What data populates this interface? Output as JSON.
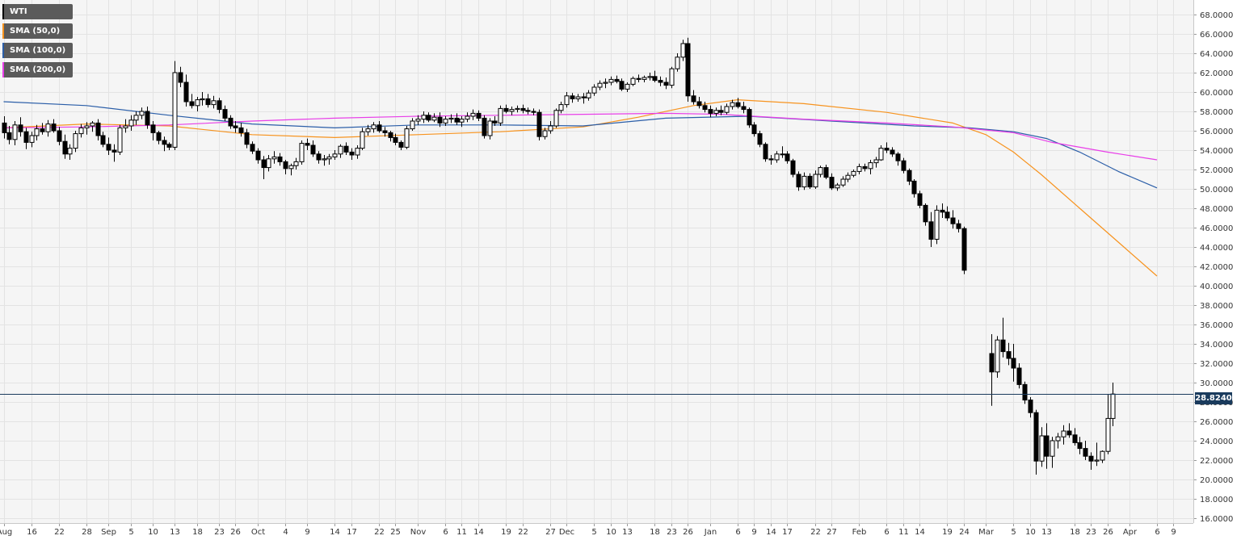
{
  "chart_data": {
    "type": "candlestick",
    "instrument": "WTI",
    "legend": [
      {
        "label": "WTI",
        "color": "#000000"
      },
      {
        "label": "SMA (50,0)",
        "color": "#f7931e"
      },
      {
        "label": "SMA (100,0)",
        "color": "#2b5ea8"
      },
      {
        "label": "SMA (200,0)",
        "color": "#e83ee8"
      }
    ],
    "legend_placement": "top-left",
    "grid": true,
    "y_axis": {
      "position": "right",
      "ylim": [
        15.5,
        69.5
      ],
      "ticks": [
        "16.0000",
        "18.0000",
        "20.0000",
        "22.0000",
        "24.0000",
        "26.0000",
        "28.0000",
        "30.0000",
        "32.0000",
        "34.0000",
        "36.0000",
        "38.0000",
        "40.0000",
        "42.0000",
        "44.0000",
        "46.0000",
        "48.0000",
        "50.0000",
        "52.0000",
        "54.0000",
        "56.0000",
        "58.0000",
        "60.0000",
        "62.0000",
        "64.0000",
        "66.0000",
        "68.0000"
      ]
    },
    "x_axis": {
      "ticks": [
        "Aug",
        "16",
        "22",
        "28",
        "Sep",
        "5",
        "10",
        "13",
        "18",
        "23",
        "26",
        "Oct",
        "4",
        "9",
        "14",
        "17",
        "22",
        "25",
        "Nov",
        "6",
        "11",
        "14",
        "19",
        "22",
        "27",
        "Dec",
        "5",
        "10",
        "13",
        "18",
        "23",
        "26",
        "Jan",
        "6",
        "9",
        "14",
        "17",
        "22",
        "27",
        "Feb",
        "6",
        "11",
        "14",
        "19",
        "24",
        "Mar",
        "5",
        "10",
        "13",
        "18",
        "23",
        "26",
        "Apr",
        "6",
        "9"
      ],
      "tick_index": [
        0,
        5,
        10,
        15,
        19,
        23,
        27,
        31,
        35,
        39,
        42,
        46,
        51,
        55,
        60,
        63,
        68,
        71,
        75,
        80,
        83,
        86,
        91,
        94,
        99,
        102,
        107,
        110,
        113,
        118,
        121,
        124,
        128,
        133,
        136,
        139,
        142,
        147,
        150,
        155,
        160,
        163,
        166,
        171,
        174,
        178,
        183,
        186,
        189,
        194,
        197,
        200,
        204,
        209,
        212
      ]
    },
    "current_price": {
      "value": 28.824,
      "label": "28.8240"
    },
    "ohlc": [
      [
        56.8,
        57.5,
        55.2,
        55.8
      ],
      [
        55.8,
        56.5,
        54.6,
        55.1
      ],
      [
        55.1,
        57.0,
        54.5,
        56.6
      ],
      [
        56.6,
        57.4,
        55.4,
        55.9
      ],
      [
        55.9,
        56.3,
        54.1,
        54.8
      ],
      [
        54.8,
        55.9,
        54.3,
        55.5
      ],
      [
        55.5,
        56.6,
        55.0,
        56.2
      ],
      [
        56.2,
        56.8,
        55.6,
        55.9
      ],
      [
        55.9,
        57.1,
        55.4,
        56.7
      ],
      [
        56.7,
        57.2,
        55.8,
        56.0
      ],
      [
        56.0,
        56.4,
        54.5,
        54.9
      ],
      [
        54.9,
        55.6,
        53.1,
        53.6
      ],
      [
        53.6,
        54.6,
        53.0,
        54.2
      ],
      [
        54.2,
        56.0,
        53.8,
        55.7
      ],
      [
        55.7,
        56.7,
        55.3,
        56.3
      ],
      [
        56.3,
        56.9,
        55.6,
        56.5
      ],
      [
        56.5,
        57.0,
        55.9,
        56.8
      ],
      [
        56.8,
        57.2,
        55.0,
        55.5
      ],
      [
        55.5,
        55.9,
        54.3,
        54.6
      ],
      [
        54.6,
        55.3,
        53.5,
        54.0
      ],
      [
        54.0,
        54.6,
        52.8,
        53.8
      ],
      [
        53.8,
        56.6,
        53.5,
        56.3
      ],
      [
        56.3,
        57.2,
        55.8,
        56.5
      ],
      [
        56.5,
        57.6,
        56.0,
        57.1
      ],
      [
        57.1,
        58.0,
        56.6,
        57.6
      ],
      [
        57.6,
        58.4,
        57.2,
        58.0
      ],
      [
        58.0,
        58.5,
        56.2,
        56.6
      ],
      [
        56.6,
        57.0,
        55.0,
        55.8
      ],
      [
        55.8,
        56.0,
        54.6,
        55.0
      ],
      [
        55.0,
        55.4,
        53.9,
        54.6
      ],
      [
        54.6,
        54.8,
        54.0,
        54.3
      ],
      [
        54.3,
        63.2,
        54.0,
        62.0
      ],
      [
        62.0,
        62.6,
        60.5,
        61.0
      ],
      [
        61.0,
        61.8,
        58.5,
        59.0
      ],
      [
        59.0,
        59.8,
        58.3,
        58.6
      ],
      [
        58.6,
        59.5,
        58.0,
        59.2
      ],
      [
        59.2,
        60.0,
        58.6,
        59.3
      ],
      [
        59.3,
        59.8,
        58.4,
        58.7
      ],
      [
        58.7,
        59.6,
        58.3,
        59.1
      ],
      [
        59.1,
        59.4,
        57.8,
        58.2
      ],
      [
        58.2,
        58.6,
        57.0,
        57.3
      ],
      [
        57.3,
        57.6,
        56.2,
        56.5
      ],
      [
        56.5,
        57.0,
        55.8,
        56.3
      ],
      [
        56.3,
        56.8,
        55.4,
        55.8
      ],
      [
        55.8,
        56.2,
        54.2,
        54.6
      ],
      [
        54.6,
        54.9,
        53.6,
        53.9
      ],
      [
        53.9,
        54.2,
        52.6,
        53.0
      ],
      [
        53.0,
        53.4,
        51.0,
        52.2
      ],
      [
        52.2,
        53.5,
        51.8,
        53.1
      ],
      [
        53.1,
        53.9,
        52.6,
        53.3
      ],
      [
        53.3,
        53.7,
        52.4,
        52.8
      ],
      [
        52.8,
        53.0,
        51.5,
        52.1
      ],
      [
        52.1,
        52.6,
        51.4,
        52.4
      ],
      [
        52.4,
        53.2,
        52.0,
        52.8
      ],
      [
        52.8,
        55.0,
        52.5,
        54.7
      ],
      [
        54.7,
        55.2,
        54.0,
        54.5
      ],
      [
        54.5,
        55.0,
        53.3,
        53.6
      ],
      [
        53.6,
        53.9,
        52.6,
        53.0
      ],
      [
        53.0,
        53.5,
        52.4,
        53.1
      ],
      [
        53.1,
        53.6,
        52.5,
        53.3
      ],
      [
        53.3,
        54.0,
        53.0,
        53.6
      ],
      [
        53.6,
        54.6,
        53.2,
        54.4
      ],
      [
        54.4,
        54.8,
        53.5,
        53.8
      ],
      [
        53.8,
        54.2,
        53.0,
        53.5
      ],
      [
        53.5,
        54.5,
        53.1,
        54.2
      ],
      [
        54.2,
        56.3,
        54.0,
        55.9
      ],
      [
        55.9,
        56.6,
        55.5,
        56.2
      ],
      [
        56.2,
        56.9,
        55.8,
        56.6
      ],
      [
        56.6,
        57.0,
        55.8,
        56.0
      ],
      [
        56.0,
        56.4,
        55.4,
        55.8
      ],
      [
        55.8,
        56.0,
        54.9,
        55.3
      ],
      [
        55.3,
        55.7,
        54.5,
        54.8
      ],
      [
        54.8,
        55.0,
        54.0,
        54.3
      ],
      [
        54.3,
        56.5,
        54.1,
        56.2
      ],
      [
        56.2,
        57.3,
        56.0,
        57.0
      ],
      [
        57.0,
        57.6,
        56.6,
        57.2
      ],
      [
        57.2,
        58.0,
        56.8,
        57.6
      ],
      [
        57.6,
        57.9,
        56.9,
        57.1
      ],
      [
        57.1,
        57.8,
        56.9,
        57.4
      ],
      [
        57.4,
        57.9,
        56.4,
        56.8
      ],
      [
        56.8,
        57.5,
        56.5,
        57.2
      ],
      [
        57.2,
        57.7,
        56.8,
        57.3
      ],
      [
        57.3,
        57.8,
        56.6,
        56.9
      ],
      [
        56.9,
        57.5,
        56.4,
        57.2
      ],
      [
        57.2,
        57.9,
        56.9,
        57.5
      ],
      [
        57.5,
        58.2,
        57.1,
        57.8
      ],
      [
        57.8,
        58.1,
        57.0,
        57.3
      ],
      [
        57.3,
        57.6,
        55.2,
        55.5
      ],
      [
        55.5,
        57.3,
        55.1,
        57.0
      ],
      [
        57.0,
        57.5,
        56.5,
        56.8
      ],
      [
        56.8,
        58.6,
        56.5,
        58.3
      ],
      [
        58.3,
        58.7,
        57.8,
        58.0
      ],
      [
        58.0,
        58.5,
        57.6,
        58.2
      ],
      [
        58.2,
        58.6,
        57.9,
        58.3
      ],
      [
        58.3,
        58.7,
        57.8,
        58.1
      ],
      [
        58.1,
        58.4,
        57.7,
        58.0
      ],
      [
        58.0,
        58.3,
        57.6,
        57.9
      ],
      [
        57.9,
        58.2,
        55.0,
        55.4
      ],
      [
        55.4,
        56.3,
        55.1,
        56.0
      ],
      [
        56.0,
        57.0,
        55.7,
        56.5
      ],
      [
        56.5,
        58.3,
        56.3,
        58.1
      ],
      [
        58.1,
        59.0,
        57.8,
        58.7
      ],
      [
        58.7,
        60.0,
        58.4,
        59.6
      ],
      [
        59.6,
        59.9,
        58.9,
        59.3
      ],
      [
        59.3,
        59.8,
        59.0,
        59.5
      ],
      [
        59.5,
        59.9,
        58.8,
        59.4
      ],
      [
        59.4,
        60.2,
        59.1,
        59.9
      ],
      [
        59.9,
        60.8,
        59.6,
        60.5
      ],
      [
        60.5,
        61.2,
        60.2,
        60.9
      ],
      [
        60.9,
        61.4,
        60.4,
        61.0
      ],
      [
        61.0,
        61.6,
        60.7,
        61.3
      ],
      [
        61.3,
        61.7,
        60.9,
        61.1
      ],
      [
        61.1,
        61.4,
        60.1,
        60.3
      ],
      [
        60.3,
        61.0,
        60.0,
        60.8
      ],
      [
        60.8,
        61.6,
        60.6,
        61.4
      ],
      [
        61.4,
        61.8,
        61.0,
        61.3
      ],
      [
        61.3,
        61.7,
        61.0,
        61.5
      ],
      [
        61.5,
        62.0,
        61.2,
        61.6
      ],
      [
        61.6,
        62.2,
        61.0,
        61.2
      ],
      [
        61.2,
        61.6,
        60.6,
        61.0
      ],
      [
        61.0,
        61.5,
        60.3,
        60.7
      ],
      [
        60.7,
        62.6,
        60.4,
        62.4
      ],
      [
        62.4,
        64.0,
        62.1,
        63.6
      ],
      [
        63.6,
        65.4,
        63.2,
        65.0
      ],
      [
        65.0,
        65.6,
        59.0,
        59.6
      ],
      [
        59.6,
        60.2,
        58.7,
        59.0
      ],
      [
        59.0,
        59.5,
        58.3,
        58.6
      ],
      [
        58.6,
        59.0,
        57.9,
        58.2
      ],
      [
        58.2,
        58.6,
        57.4,
        57.8
      ],
      [
        57.8,
        58.4,
        57.5,
        58.1
      ],
      [
        58.1,
        58.6,
        57.6,
        57.9
      ],
      [
        57.9,
        58.8,
        57.7,
        58.5
      ],
      [
        58.5,
        59.2,
        58.2,
        58.9
      ],
      [
        58.9,
        59.4,
        58.3,
        58.5
      ],
      [
        58.5,
        59.0,
        57.8,
        58.2
      ],
      [
        58.2,
        58.4,
        56.3,
        56.6
      ],
      [
        56.6,
        56.9,
        55.4,
        55.7
      ],
      [
        55.7,
        56.0,
        54.3,
        54.6
      ],
      [
        54.6,
        54.8,
        52.8,
        53.1
      ],
      [
        53.1,
        53.5,
        52.5,
        53.0
      ],
      [
        53.0,
        53.9,
        52.7,
        53.6
      ],
      [
        53.6,
        54.4,
        53.2,
        53.6
      ],
      [
        53.6,
        53.9,
        52.6,
        52.9
      ],
      [
        52.9,
        53.1,
        51.2,
        51.5
      ],
      [
        51.5,
        51.8,
        49.8,
        50.2
      ],
      [
        50.2,
        51.7,
        49.9,
        51.3
      ],
      [
        51.3,
        51.6,
        50.0,
        50.2
      ],
      [
        50.2,
        51.9,
        50.0,
        51.5
      ],
      [
        51.5,
        52.4,
        51.2,
        52.2
      ],
      [
        52.2,
        52.5,
        51.0,
        51.2
      ],
      [
        51.2,
        51.6,
        49.9,
        50.1
      ],
      [
        50.1,
        50.6,
        49.8,
        50.4
      ],
      [
        50.4,
        51.3,
        50.2,
        51.0
      ],
      [
        51.0,
        51.7,
        50.7,
        51.4
      ],
      [
        51.4,
        52.0,
        51.2,
        51.8
      ],
      [
        51.8,
        52.6,
        51.5,
        52.3
      ],
      [
        52.3,
        52.6,
        51.8,
        52.1
      ],
      [
        52.1,
        53.0,
        51.5,
        52.7
      ],
      [
        52.7,
        53.3,
        52.2,
        53.0
      ],
      [
        53.0,
        54.5,
        52.9,
        54.2
      ],
      [
        54.2,
        54.8,
        53.7,
        54.0
      ],
      [
        54.0,
        54.3,
        53.3,
        53.6
      ],
      [
        53.6,
        53.8,
        52.4,
        52.9
      ],
      [
        52.9,
        53.2,
        51.6,
        51.9
      ],
      [
        51.9,
        52.1,
        50.4,
        50.8
      ],
      [
        50.8,
        51.0,
        49.1,
        49.5
      ],
      [
        49.5,
        49.8,
        48.0,
        48.3
      ],
      [
        48.3,
        48.5,
        46.2,
        46.6
      ],
      [
        46.6,
        47.6,
        44.0,
        44.8
      ],
      [
        44.8,
        48.3,
        44.3,
        47.8
      ],
      [
        47.8,
        48.5,
        47.0,
        47.6
      ],
      [
        47.6,
        48.2,
        46.7,
        47.0
      ],
      [
        47.0,
        47.8,
        45.9,
        46.4
      ],
      [
        46.4,
        46.8,
        45.5,
        45.9
      ],
      [
        45.9,
        46.1,
        41.2,
        41.6
      ],
      [
        null,
        null,
        null,
        null
      ],
      [
        null,
        null,
        null,
        null
      ],
      [
        null,
        null,
        null,
        null
      ],
      [
        null,
        null,
        null,
        null
      ],
      [
        33.0,
        35.0,
        27.6,
        31.1
      ],
      [
        31.1,
        34.8,
        30.5,
        34.4
      ],
      [
        34.4,
        36.7,
        32.6,
        33.2
      ],
      [
        33.2,
        34.1,
        31.8,
        32.5
      ],
      [
        32.5,
        34.0,
        30.1,
        31.5
      ],
      [
        31.5,
        32.0,
        29.4,
        29.8
      ],
      [
        29.8,
        30.1,
        27.8,
        28.2
      ],
      [
        28.2,
        28.5,
        26.4,
        26.9
      ],
      [
        26.9,
        27.2,
        20.5,
        21.9
      ],
      [
        21.9,
        25.4,
        21.3,
        24.5
      ],
      [
        24.5,
        25.8,
        21.1,
        22.4
      ],
      [
        22.4,
        24.4,
        21.2,
        24.0
      ],
      [
        24.0,
        24.8,
        23.2,
        24.4
      ],
      [
        24.4,
        25.6,
        23.6,
        25.0
      ],
      [
        25.0,
        25.8,
        24.3,
        24.6
      ],
      [
        24.6,
        25.3,
        23.5,
        23.8
      ],
      [
        23.8,
        24.4,
        22.6,
        23.2
      ],
      [
        23.2,
        24.0,
        22.0,
        22.4
      ],
      [
        22.4,
        22.8,
        21.0,
        21.9
      ],
      [
        21.9,
        23.8,
        21.4,
        22.0
      ],
      [
        22.0,
        23.0,
        21.7,
        22.9
      ],
      [
        22.9,
        28.8,
        22.6,
        26.3
      ],
      [
        26.3,
        30.0,
        25.5,
        28.82
      ]
    ],
    "sma_50": [
      [
        0,
        56.3
      ],
      [
        15,
        56.7
      ],
      [
        30,
        56.5
      ],
      [
        45,
        55.6
      ],
      [
        60,
        55.3
      ],
      [
        75,
        55.6
      ],
      [
        90,
        55.9
      ],
      [
        105,
        56.4
      ],
      [
        115,
        57.4
      ],
      [
        125,
        58.6
      ],
      [
        133,
        59.2
      ],
      [
        145,
        58.8
      ],
      [
        160,
        57.9
      ],
      [
        172,
        56.8
      ],
      [
        178,
        55.6
      ],
      [
        183,
        53.8
      ],
      [
        188,
        51.5
      ],
      [
        195,
        48.0
      ],
      [
        203,
        44.0
      ],
      [
        209,
        41.0
      ]
    ],
    "sma_100": [
      [
        0,
        59.0
      ],
      [
        15,
        58.6
      ],
      [
        30,
        57.6
      ],
      [
        45,
        56.7
      ],
      [
        60,
        56.3
      ],
      [
        75,
        56.6
      ],
      [
        90,
        56.6
      ],
      [
        105,
        56.5
      ],
      [
        120,
        57.3
      ],
      [
        135,
        57.5
      ],
      [
        150,
        57.0
      ],
      [
        165,
        56.5
      ],
      [
        175,
        56.3
      ],
      [
        183,
        55.9
      ],
      [
        189,
        55.2
      ],
      [
        195,
        53.8
      ],
      [
        202,
        51.8
      ],
      [
        209,
        50.1
      ]
    ],
    "sma_200": [
      [
        0,
        56.3
      ],
      [
        15,
        56.4
      ],
      [
        30,
        56.6
      ],
      [
        45,
        57.0
      ],
      [
        60,
        57.3
      ],
      [
        75,
        57.5
      ],
      [
        90,
        57.6
      ],
      [
        105,
        57.7
      ],
      [
        120,
        57.8
      ],
      [
        130,
        57.7
      ],
      [
        145,
        57.2
      ],
      [
        160,
        56.8
      ],
      [
        172,
        56.4
      ],
      [
        183,
        55.8
      ],
      [
        190,
        54.8
      ],
      [
        200,
        53.8
      ],
      [
        209,
        53.0
      ]
    ]
  }
}
